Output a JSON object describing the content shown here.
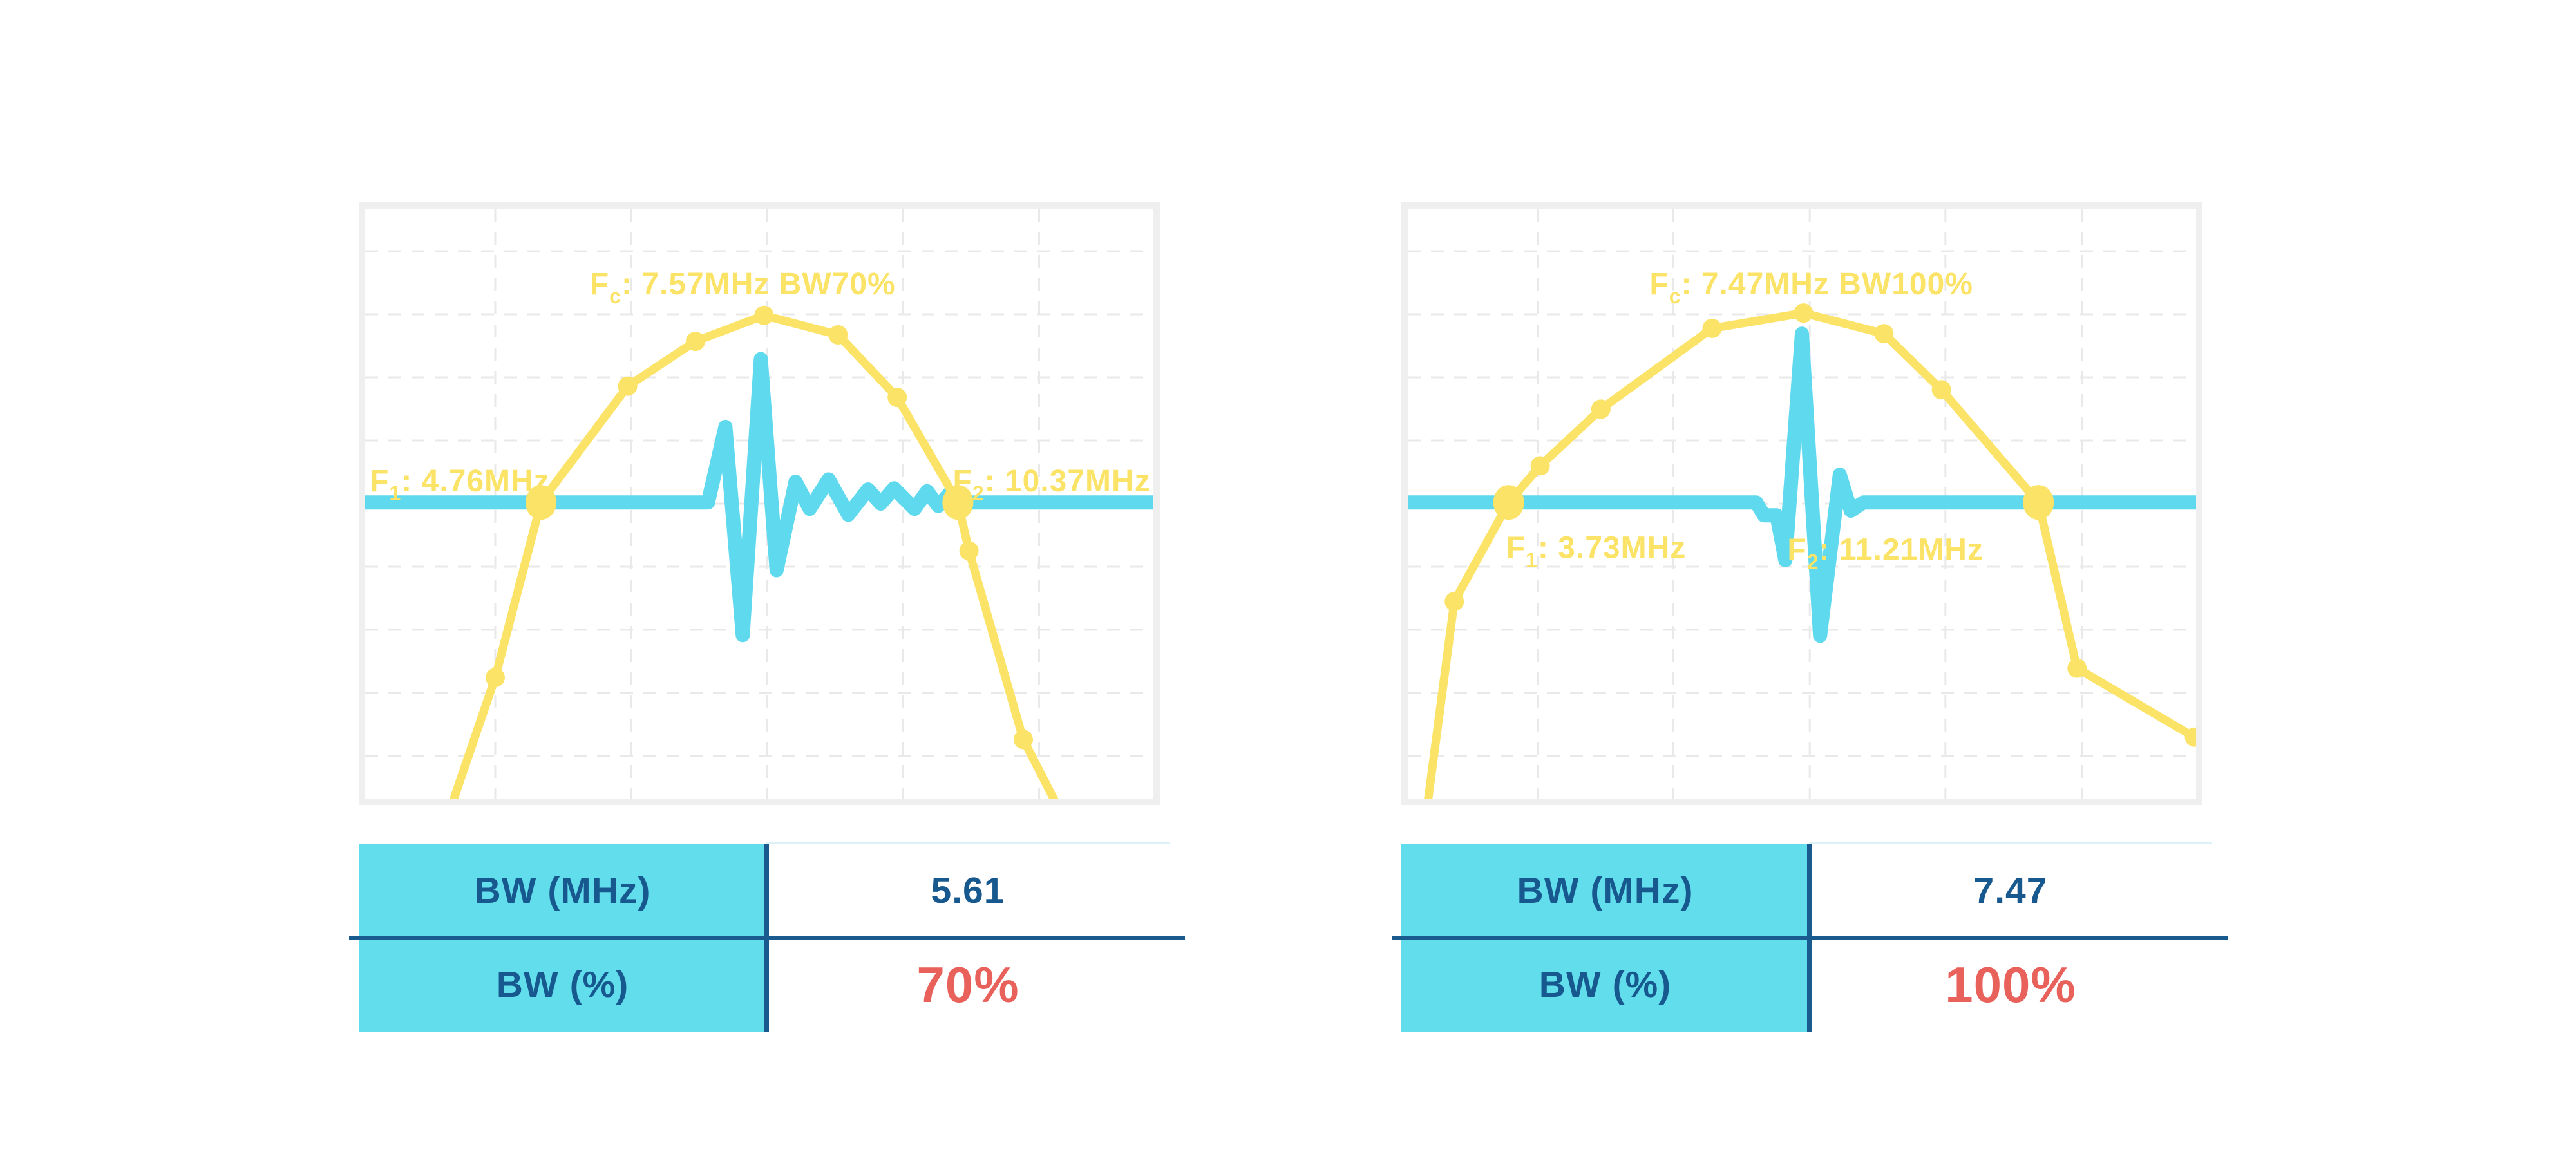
{
  "colors": {
    "spectrum_yellow": "#FBE367",
    "waveform_cyan": "#5FD9ED",
    "table_header_bg": "#62DDEC",
    "table_text_blue": "#17598F",
    "divider_blue": "#1A5B8F",
    "highlight_red": "#E8615A",
    "chart_border": "#EFEFEF",
    "grid_line": "#E9E9E9",
    "table_top_border": "#DDF1F8"
  },
  "tables": [
    {
      "rows": [
        {
          "label": "BW (MHz)",
          "value": "5.61"
        },
        {
          "label": "BW (%)",
          "value": "70%"
        }
      ]
    },
    {
      "rows": [
        {
          "label": "BW (MHz)",
          "value": "7.47"
        },
        {
          "label": "BW (%)",
          "value": "100%"
        }
      ]
    }
  ],
  "chart_data": [
    {
      "type": "line",
      "title": {
        "prefix": "F",
        "sub": "c",
        "rest": ": 7.57MHz BW70%"
      },
      "f1_label": {
        "prefix": "F",
        "sub": "1",
        "rest": ": 4.76MHz"
      },
      "f2_label": {
        "prefix": "F",
        "sub": "2",
        "rest": ": 10.37MHz"
      },
      "fc_mhz": 7.57,
      "f1_mhz": 4.76,
      "f2_mhz": 10.37,
      "bw_mhz": 5.61,
      "bw_percent": 70,
      "x_axis": {
        "visible": false,
        "unit": "MHz"
      },
      "legend": "none",
      "baseline_frac": 0.498,
      "title_pos": [
        0.479,
        0.128
      ],
      "f1_pos": [
        0.12,
        0.462
      ],
      "f2_pos": [
        0.871,
        0.462
      ],
      "grid": {
        "x": [
          0.165,
          0.337,
          0.51,
          0.682,
          0.855
        ],
        "y": [
          0.072,
          0.179,
          0.286,
          0.393,
          0.5,
          0.607,
          0.714,
          0.821,
          0.928
        ]
      },
      "series": [
        {
          "name": "spectrum",
          "points": [
            [
              0.105,
              1.03
            ],
            [
              0.165,
              0.795
            ],
            [
              0.223,
              0.498
            ],
            [
              0.333,
              0.301
            ],
            [
              0.419,
              0.225
            ],
            [
              0.506,
              0.181
            ],
            [
              0.6,
              0.214
            ],
            [
              0.675,
              0.32
            ],
            [
              0.752,
              0.498
            ],
            [
              0.766,
              0.58
            ],
            [
              0.835,
              0.9
            ],
            [
              0.885,
              1.03
            ]
          ],
          "markers": [
            [
              0.165,
              0.795,
              0
            ],
            [
              0.223,
              0.498,
              1
            ],
            [
              0.333,
              0.301,
              0
            ],
            [
              0.419,
              0.225,
              0
            ],
            [
              0.506,
              0.181,
              0
            ],
            [
              0.6,
              0.214,
              0
            ],
            [
              0.675,
              0.32,
              0
            ],
            [
              0.752,
              0.498,
              1
            ],
            [
              0.766,
              0.58,
              0
            ],
            [
              0.835,
              0.9,
              0
            ]
          ]
        },
        {
          "name": "pulse-waveform",
          "points": [
            [
              0,
              0.498
            ],
            [
              0.435,
              0.498
            ],
            [
              0.457,
              0.37
            ],
            [
              0.479,
              0.723
            ],
            [
              0.502,
              0.255
            ],
            [
              0.522,
              0.613
            ],
            [
              0.546,
              0.463
            ],
            [
              0.564,
              0.509
            ],
            [
              0.588,
              0.459
            ],
            [
              0.613,
              0.519
            ],
            [
              0.638,
              0.476
            ],
            [
              0.654,
              0.5
            ],
            [
              0.671,
              0.474
            ],
            [
              0.697,
              0.509
            ],
            [
              0.713,
              0.479
            ],
            [
              0.727,
              0.504
            ],
            [
              0.741,
              0.483
            ],
            [
              0.756,
              0.498
            ],
            [
              1,
              0.498
            ]
          ]
        }
      ]
    },
    {
      "type": "line",
      "title": {
        "prefix": "F",
        "sub": "c",
        "rest": ": 7.47MHz BW100%"
      },
      "f1_label": {
        "prefix": "F",
        "sub": "1",
        "rest": ": 3.73MHz"
      },
      "f2_label": {
        "prefix": "F",
        "sub": "2",
        "rest": ": 11.21MHz"
      },
      "fc_mhz": 7.47,
      "f1_mhz": 3.73,
      "f2_mhz": 11.21,
      "bw_mhz": 7.47,
      "bw_percent": 100,
      "x_axis": {
        "visible": false,
        "unit": "MHz"
      },
      "legend": "none",
      "baseline_frac": 0.498,
      "title_pos": [
        0.512,
        0.128
      ],
      "f1_pos": [
        0.239,
        0.575
      ],
      "f2_pos": [
        0.606,
        0.578
      ],
      "grid": {
        "x": [
          0.165,
          0.337,
          0.51,
          0.682,
          0.855
        ],
        "y": [
          0.072,
          0.179,
          0.286,
          0.393,
          0.5,
          0.607,
          0.714,
          0.821,
          0.928
        ]
      },
      "series": [
        {
          "name": "spectrum",
          "points": [
            [
              0.023,
              1.03
            ],
            [
              0.059,
              0.666
            ],
            [
              0.128,
              0.498
            ],
            [
              0.168,
              0.436
            ],
            [
              0.245,
              0.34
            ],
            [
              0.386,
              0.203
            ],
            [
              0.502,
              0.177
            ],
            [
              0.604,
              0.212
            ],
            [
              0.677,
              0.307
            ],
            [
              0.8,
              0.498
            ],
            [
              0.849,
              0.779
            ],
            [
              0.998,
              0.896
            ]
          ],
          "markers": [
            [
              0.059,
              0.666,
              0
            ],
            [
              0.128,
              0.498,
              1
            ],
            [
              0.168,
              0.436,
              0
            ],
            [
              0.245,
              0.34,
              0
            ],
            [
              0.386,
              0.203,
              0
            ],
            [
              0.502,
              0.177,
              0
            ],
            [
              0.604,
              0.212,
              0
            ],
            [
              0.677,
              0.307,
              0
            ],
            [
              0.8,
              0.498,
              1
            ],
            [
              0.849,
              0.779,
              0
            ],
            [
              0.998,
              0.896,
              0
            ]
          ]
        },
        {
          "name": "pulse-waveform",
          "points": [
            [
              0,
              0.498
            ],
            [
              0.442,
              0.498
            ],
            [
              0.452,
              0.52
            ],
            [
              0.468,
              0.52
            ],
            [
              0.479,
              0.596
            ],
            [
              0.5,
              0.212
            ],
            [
              0.523,
              0.724
            ],
            [
              0.548,
              0.451
            ],
            [
              0.562,
              0.512
            ],
            [
              0.578,
              0.498
            ],
            [
              1,
              0.498
            ]
          ]
        }
      ]
    }
  ]
}
